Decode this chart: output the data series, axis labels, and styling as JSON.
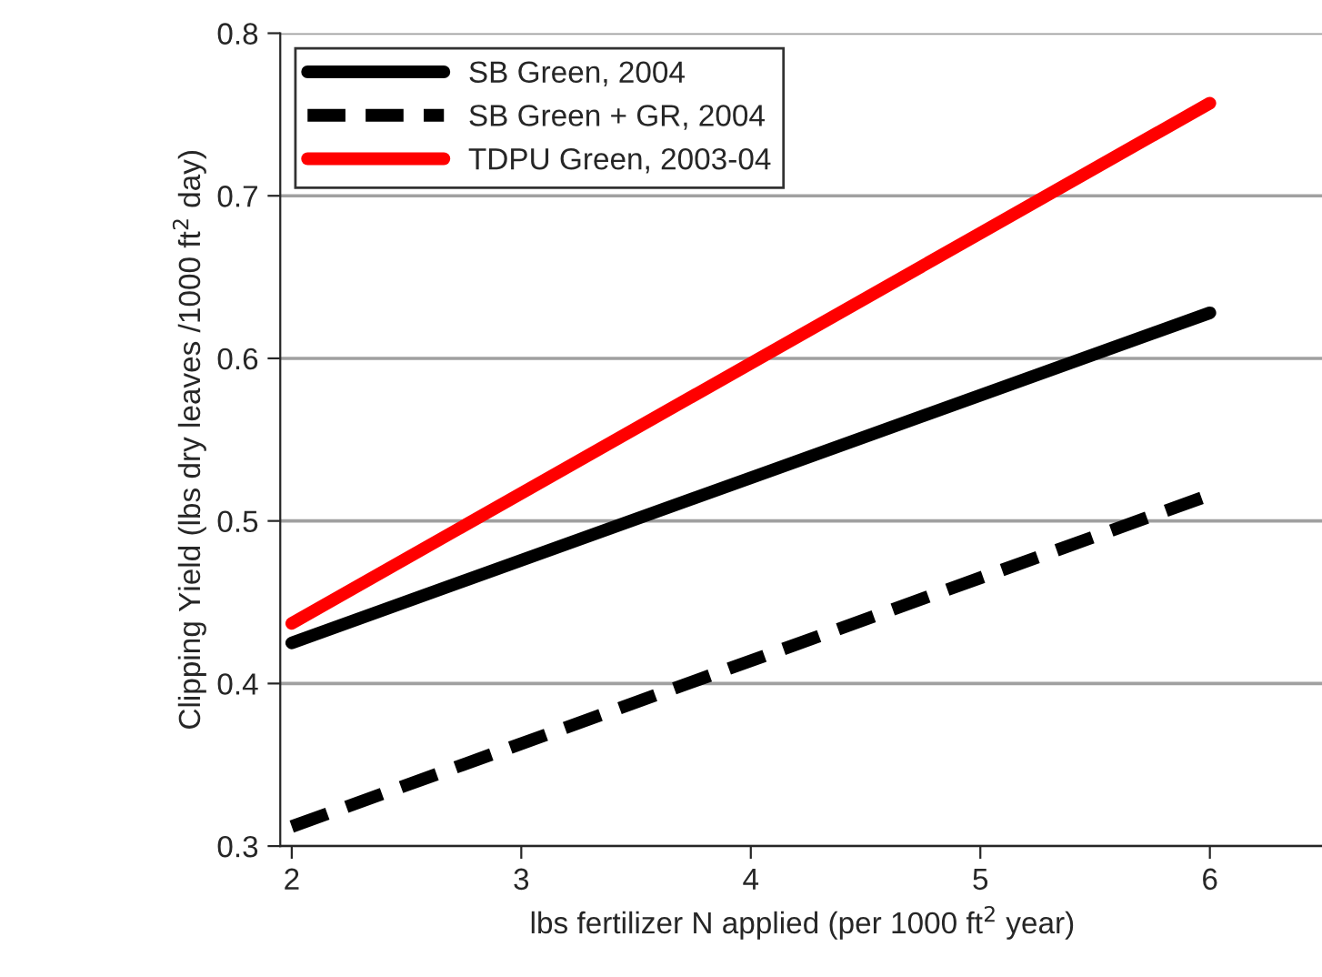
{
  "chart_data": {
    "type": "line",
    "xlabel": "lbs fertilizer N applied (per 1000 ft$^{2}$ year)",
    "ylabel": "Clipping Yield (lbs dry leaves /1000 ft$^{2}$ day)",
    "x": [
      2,
      6
    ],
    "series": [
      {
        "name": "SB Green, 2004",
        "color": "#000000",
        "values": [
          0.425,
          0.628
        ],
        "line_style": "solid"
      },
      {
        "name": "SB Green + GR, 2004",
        "color": "#000000",
        "values": [
          0.312,
          0.516
        ],
        "line_style": "dashed"
      },
      {
        "name": "TDPU Green, 2003-04",
        "color": "#ff0000",
        "values": [
          0.437,
          0.757
        ],
        "line_style": "solid"
      }
    ],
    "xlim": [
      1.95,
      6.5
    ],
    "ylim": [
      0.3,
      0.8
    ],
    "xticks": [
      2,
      3,
      4,
      5,
      6
    ],
    "yticks": [
      0.3,
      0.4,
      0.5,
      0.6,
      0.7,
      0.8
    ],
    "grid": "y",
    "legend": "top left",
    "marker": "none"
  }
}
